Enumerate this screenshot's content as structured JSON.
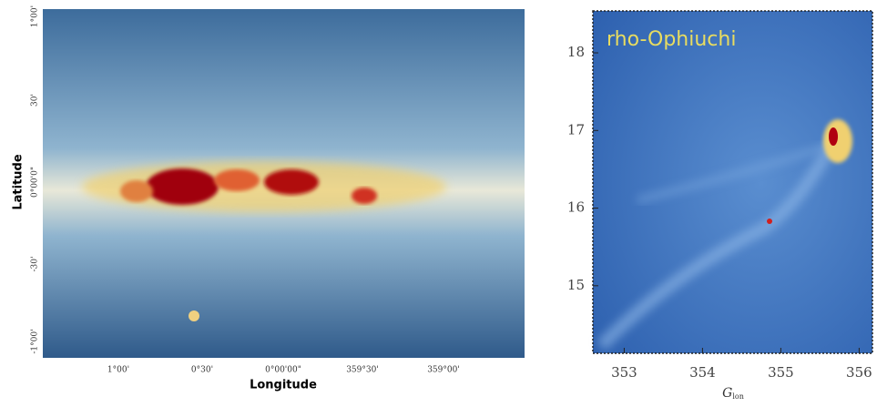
{
  "left_panel": {
    "xlabel": "Longitude",
    "ylabel": "Latitude",
    "xticks": [
      "1°00'",
      "0°30'",
      "0°00'00\"",
      "359°30'",
      "359°00'"
    ],
    "yticks": [
      "1°00'",
      "30'",
      "0°00'0\"",
      "-30'",
      "-1°00'"
    ]
  },
  "right_panel": {
    "annotation": "rho-Ophiuchi",
    "xlabel": {
      "symbol": "G",
      "subscript": "lon"
    },
    "xlim": [
      352.6,
      356.17
    ],
    "xticks": [
      353,
      354,
      355,
      356
    ],
    "ylim": [
      14.13,
      18.54
    ],
    "yticks": [
      15,
      16,
      17,
      18
    ]
  }
}
